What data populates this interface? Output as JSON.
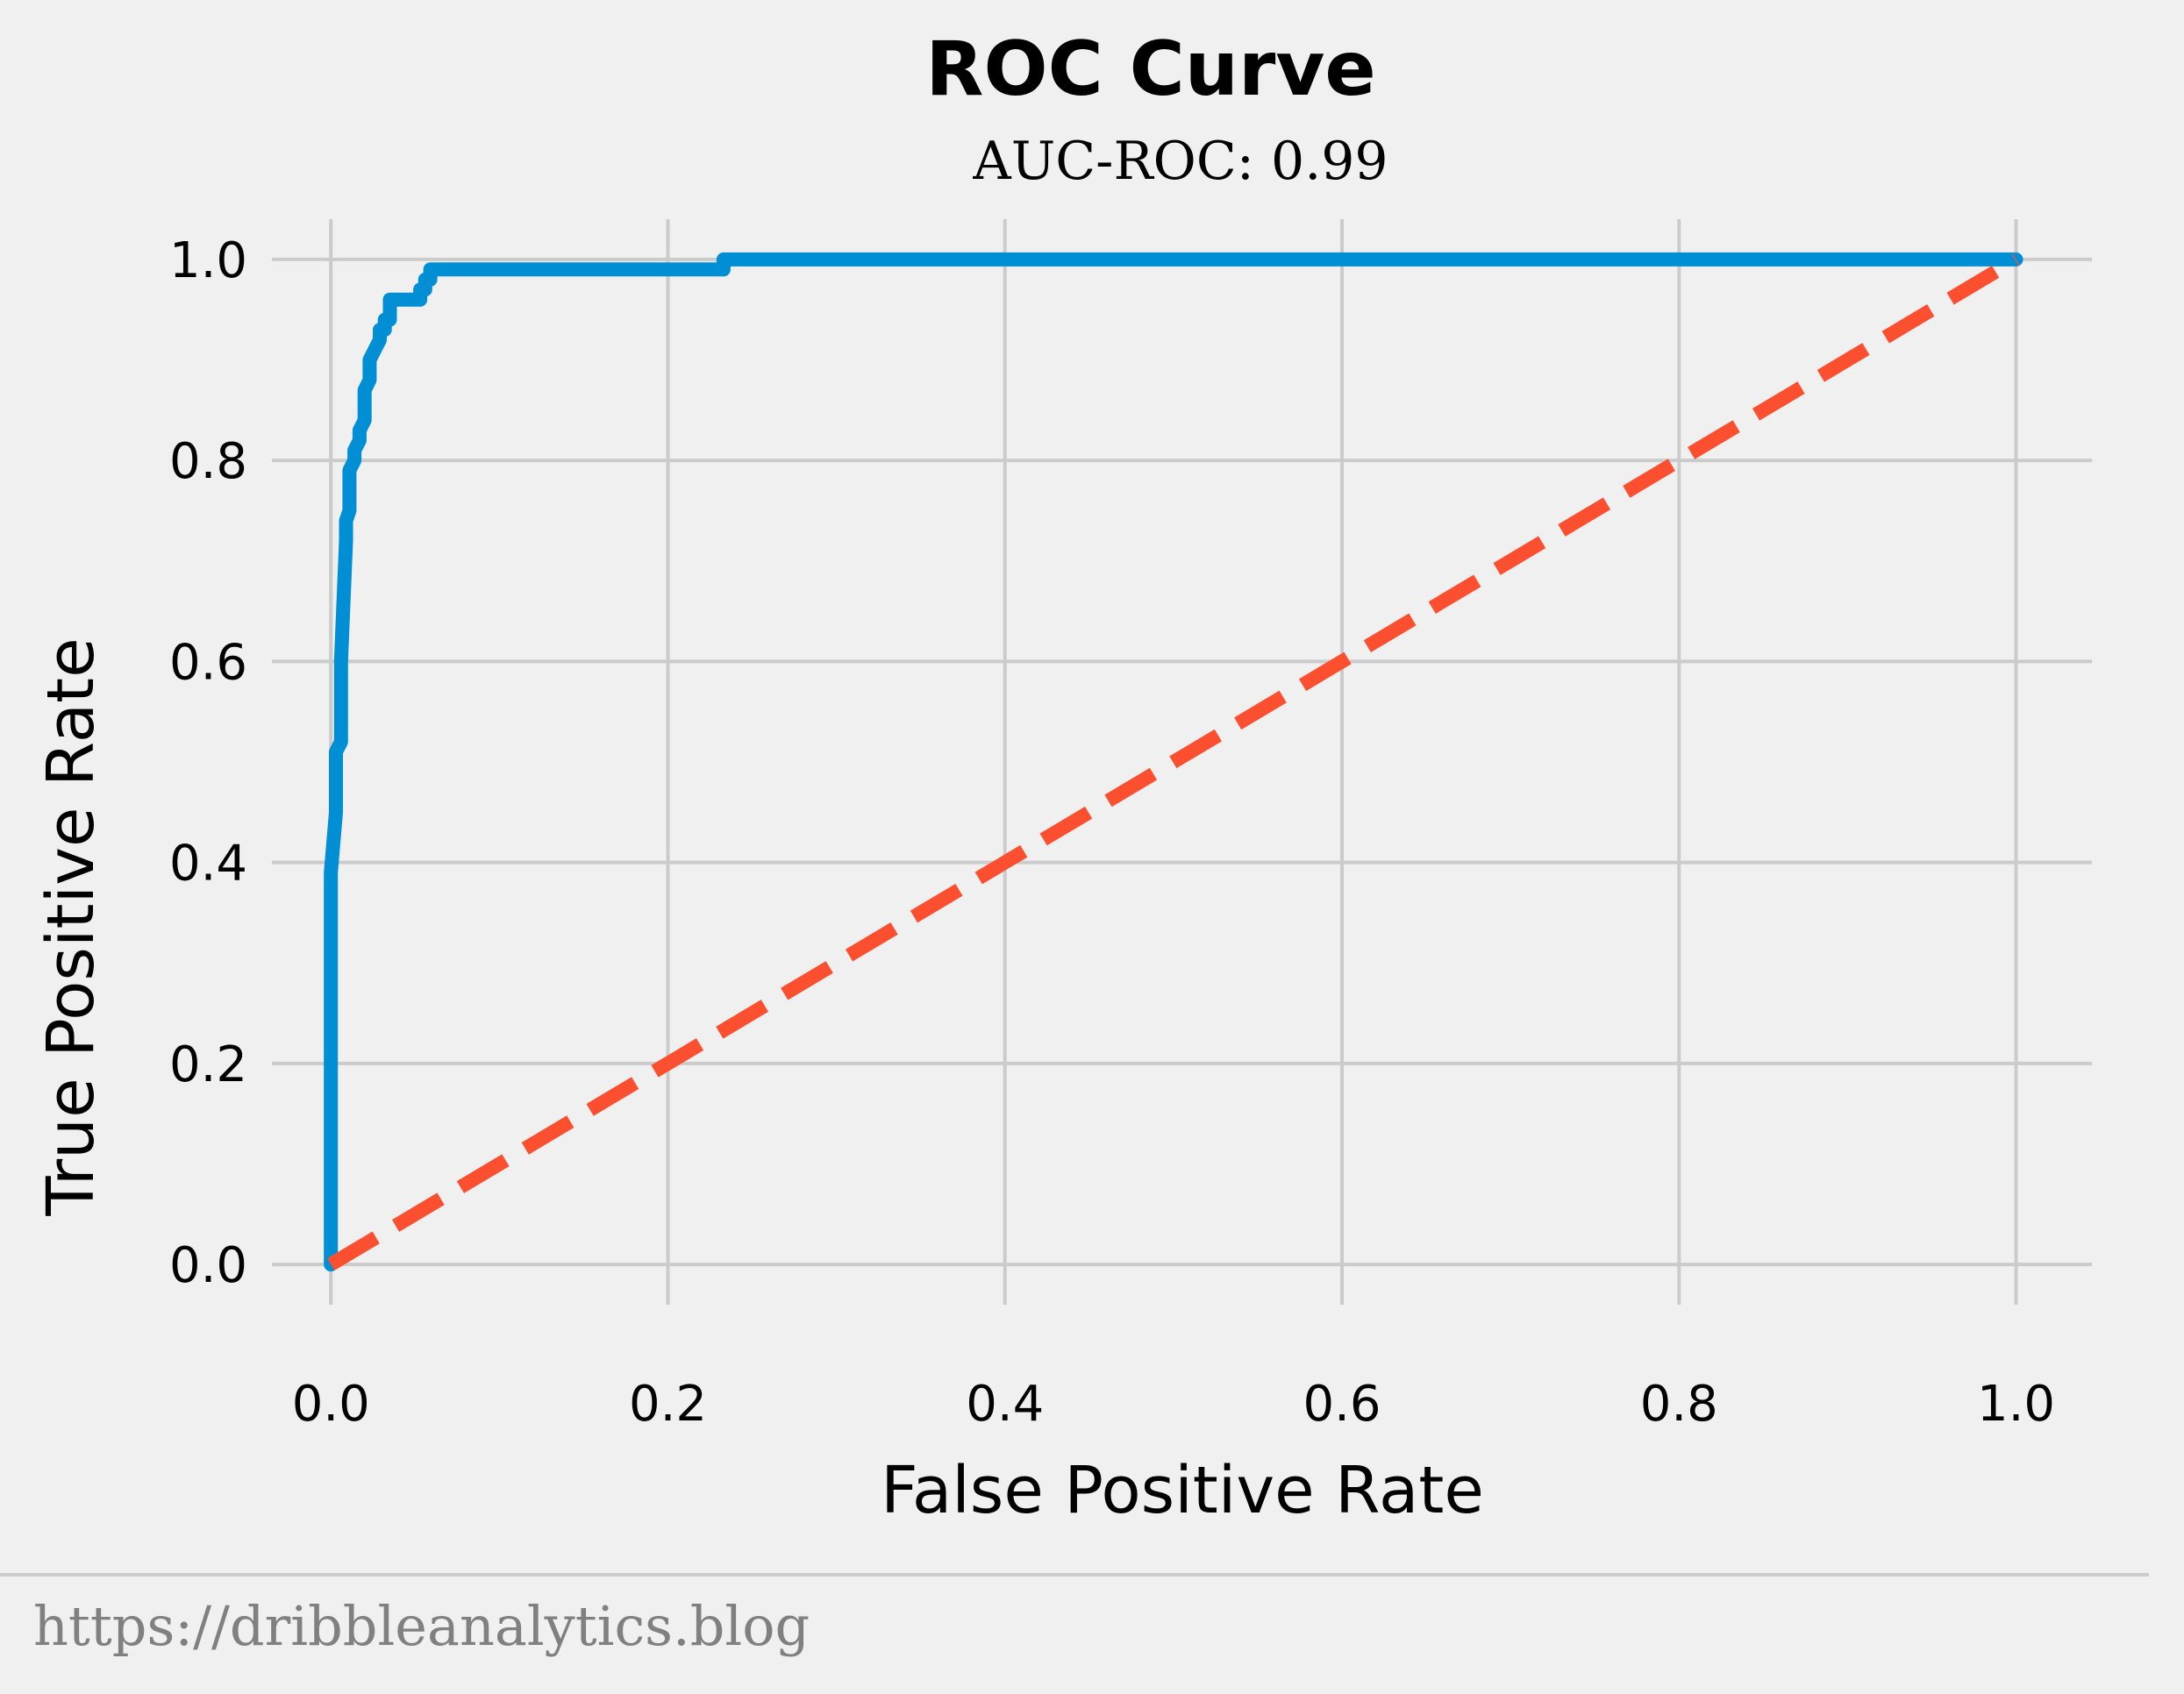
{
  "chart_data": {
    "type": "line",
    "title": "ROC Curve",
    "subtitle": "AUC-ROC: 0.99",
    "xlabel": "False Positive Rate",
    "ylabel": "True Positive Rate",
    "xlim": [
      -0.035,
      1.045
    ],
    "ylim": [
      -0.04,
      1.04
    ],
    "xticks": [
      0.0,
      0.2,
      0.4,
      0.6,
      0.8,
      1.0
    ],
    "xtick_labels": [
      "0.0",
      "0.2",
      "0.4",
      "0.6",
      "0.8",
      "1.0"
    ],
    "yticks": [
      0.0,
      0.2,
      0.4,
      0.6,
      0.8,
      1.0
    ],
    "ytick_labels": [
      "0.0",
      "0.2",
      "0.4",
      "0.6",
      "0.8",
      "1.0"
    ],
    "grid": true,
    "series": [
      {
        "style": "solid",
        "color": "#008fd5",
        "x": [
          0.0,
          0.0,
          0.003,
          0.003,
          0.006,
          0.006,
          0.009,
          0.009,
          0.011,
          0.011,
          0.014,
          0.014,
          0.017,
          0.017,
          0.02,
          0.02,
          0.023,
          0.023,
          0.026,
          0.026,
          0.029,
          0.029,
          0.032,
          0.032,
          0.035,
          0.035,
          0.038,
          0.038,
          0.053,
          0.053,
          0.056,
          0.056,
          0.059,
          0.059,
          0.064,
          0.064,
          0.233,
          0.233,
          1.0
        ],
        "y": [
          0.0,
          0.39,
          0.45,
          0.51,
          0.52,
          0.6,
          0.72,
          0.74,
          0.75,
          0.79,
          0.8,
          0.81,
          0.82,
          0.83,
          0.84,
          0.87,
          0.88,
          0.9,
          0.91,
          0.91,
          0.92,
          0.93,
          0.93,
          0.94,
          0.94,
          0.96,
          0.96,
          0.96,
          0.96,
          0.97,
          0.97,
          0.98,
          0.98,
          0.99,
          0.99,
          0.99,
          0.99,
          1.0,
          1.0
        ]
      },
      {
        "style": "dashed",
        "color": "#fc4f30",
        "x": [
          0.0,
          1.0
        ],
        "y": [
          0.0,
          1.0
        ]
      }
    ]
  },
  "footer": {
    "source": "https://dribbleanalytics.blog",
    "text_color": "#808080",
    "rule_color": "#cbcbcb"
  },
  "style": {
    "background": "#f0f0f0",
    "grid_color": "#cbcbcb"
  }
}
